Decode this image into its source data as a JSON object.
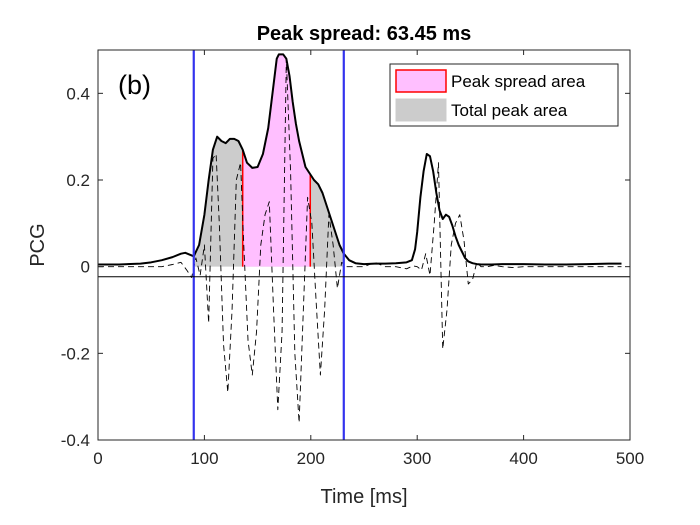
{
  "chart_data": {
    "type": "line",
    "title": "Peak spread: 63.45 ms",
    "panel_label": "(b)",
    "xlabel": "Time [ms]",
    "ylabel": "PCG",
    "xlim": [
      0,
      500
    ],
    "ylim": [
      -0.4,
      0.5
    ],
    "xticks": [
      0,
      100,
      200,
      300,
      400,
      500
    ],
    "xtick_labels": [
      "0",
      "100",
      "200",
      "300",
      "400",
      "500"
    ],
    "yticks": [
      -0.4,
      -0.2,
      0,
      0.2,
      0.4
    ],
    "ytick_labels": [
      "-0.4",
      "-0.2",
      "0",
      "0.2",
      "0.4"
    ],
    "grid": false,
    "legend_position": "top-right",
    "legend": [
      {
        "label": "Peak spread area",
        "fill": "#ffbfff",
        "edge": "#ff0000"
      },
      {
        "label": "Total peak area",
        "fill": "#cccccc",
        "edge": "#cccccc"
      }
    ],
    "vertical_lines": [
      {
        "x": 90,
        "color": "#3333ee"
      },
      {
        "x": 231,
        "color": "#3333ee"
      }
    ],
    "total_peak_area": {
      "x_start": 90,
      "x_end": 231
    },
    "peak_spread_area": {
      "x_start": 136,
      "x_end": 199.5,
      "edge_color": "#ff0000"
    },
    "series": [
      {
        "name": "Envelope",
        "style": "solid",
        "color": "#000000",
        "x": [
          0,
          20,
          40,
          50,
          60,
          70,
          78,
          82,
          86,
          90,
          95,
          100,
          104,
          108,
          112,
          116,
          120,
          124,
          128,
          132,
          136,
          140,
          145,
          150,
          155,
          160,
          163,
          166,
          168,
          170,
          174,
          177,
          180,
          183,
          186,
          189,
          192,
          195,
          199,
          203,
          207,
          211,
          215,
          219,
          223,
          227,
          231,
          236,
          242,
          250,
          260,
          270,
          280,
          290,
          295,
          298,
          300,
          303,
          306,
          309,
          312,
          315,
          318,
          321,
          324,
          327,
          330,
          333,
          336,
          339,
          342,
          345,
          348,
          352,
          356,
          360,
          370,
          380,
          400,
          420,
          440,
          460,
          480,
          492
        ],
        "y": [
          0.005,
          0.005,
          0.007,
          0.01,
          0.015,
          0.022,
          0.03,
          0.032,
          0.028,
          0.024,
          0.05,
          0.12,
          0.2,
          0.27,
          0.3,
          0.29,
          0.285,
          0.295,
          0.295,
          0.29,
          0.27,
          0.24,
          0.228,
          0.23,
          0.26,
          0.32,
          0.38,
          0.44,
          0.48,
          0.49,
          0.49,
          0.48,
          0.44,
          0.38,
          0.33,
          0.29,
          0.26,
          0.23,
          0.215,
          0.2,
          0.19,
          0.17,
          0.14,
          0.11,
          0.08,
          0.05,
          0.03,
          0.015,
          0.008,
          0.006,
          0.007,
          0.007,
          0.008,
          0.01,
          0.015,
          0.04,
          0.08,
          0.16,
          0.22,
          0.26,
          0.255,
          0.22,
          0.17,
          0.13,
          0.11,
          0.12,
          0.115,
          0.095,
          0.07,
          0.05,
          0.035,
          0.02,
          0.012,
          0.008,
          0.006,
          0.005,
          0.005,
          0.006,
          0.006,
          0.005,
          0.005,
          0.006,
          0.007,
          0.007
        ]
      },
      {
        "name": "PCG signal",
        "style": "dashed",
        "color": "#000000",
        "x": [
          0,
          30,
          60,
          70,
          78,
          84,
          88,
          92,
          96,
          100,
          104,
          108,
          111,
          114,
          118,
          122,
          126,
          130,
          134,
          137,
          141,
          145,
          149,
          153,
          157,
          161,
          165,
          169,
          173,
          177,
          181,
          185,
          189,
          193,
          197,
          201,
          205,
          209,
          213,
          217,
          221,
          225,
          229,
          234,
          240,
          250,
          260,
          270,
          280,
          290,
          296,
          300,
          304,
          308,
          312,
          316,
          320,
          324,
          328,
          332,
          336,
          340,
          344,
          348,
          352,
          356,
          360,
          366,
          372,
          380,
          390,
          400,
          420,
          440,
          460,
          480,
          492
        ],
        "y": [
          0,
          0,
          0,
          0.005,
          0.01,
          -0.01,
          -0.025,
          0.02,
          -0.02,
          0.05,
          -0.13,
          0.25,
          0.26,
          0.1,
          -0.18,
          -0.29,
          -0.1,
          0.2,
          0.24,
          0.05,
          -0.17,
          -0.25,
          -0.15,
          0.05,
          0.12,
          0.15,
          -0.1,
          -0.33,
          -0.15,
          0.48,
          0.22,
          -0.2,
          -0.36,
          -0.1,
          0.16,
          0.1,
          -0.08,
          -0.25,
          -0.1,
          0.12,
          0.05,
          -0.05,
          0.01,
          0,
          0,
          0,
          0.01,
          0,
          0,
          -0.005,
          0.002,
          0,
          -0.008,
          0.03,
          -0.02,
          0.1,
          0.24,
          -0.19,
          -0.1,
          0.05,
          0.1,
          0.12,
          0.06,
          -0.04,
          -0.03,
          0.01,
          0,
          0,
          0.003,
          0,
          -0.002,
          0,
          0,
          0,
          0,
          0,
          0
        ]
      }
    ]
  }
}
